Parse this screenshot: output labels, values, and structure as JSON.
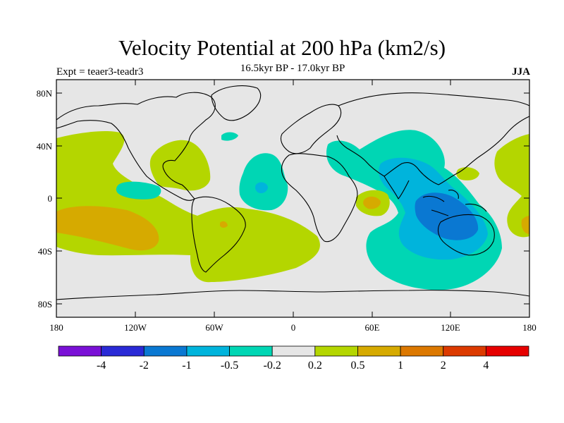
{
  "title": "Velocity Potential at 200 hPa (km2/s)",
  "subtitle": "16.5kyr BP - 17.0kyr BP",
  "left_label": "Expt = teaer3-teadr3",
  "right_label": "JJA",
  "lat_labels": [
    "80N",
    "40N",
    "0",
    "40S",
    "80S"
  ],
  "lon_labels": [
    "180",
    "120W",
    "60W",
    "0",
    "60E",
    "120E",
    "180"
  ],
  "colorbar": {
    "labels": [
      "-4",
      "-2",
      "-1",
      "-0.5",
      "-0.2",
      "0.2",
      "0.5",
      "1",
      "2",
      "4"
    ],
    "colors": [
      "#7a10d6",
      "#2a2ad6",
      "#0a78d2",
      "#00b4dc",
      "#00d6b4",
      "#e6e6e6",
      "#b4d600",
      "#d6aa00",
      "#dc7800",
      "#dc3a00",
      "#e60000"
    ]
  },
  "colors": {
    "background": "#e6e6e6",
    "positive_small": "#b4d600",
    "positive_mid": "#d6aa00",
    "negative_small": "#00d6b4",
    "negative_mid": "#00b4dc",
    "negative_large": "#0a78d2"
  }
}
